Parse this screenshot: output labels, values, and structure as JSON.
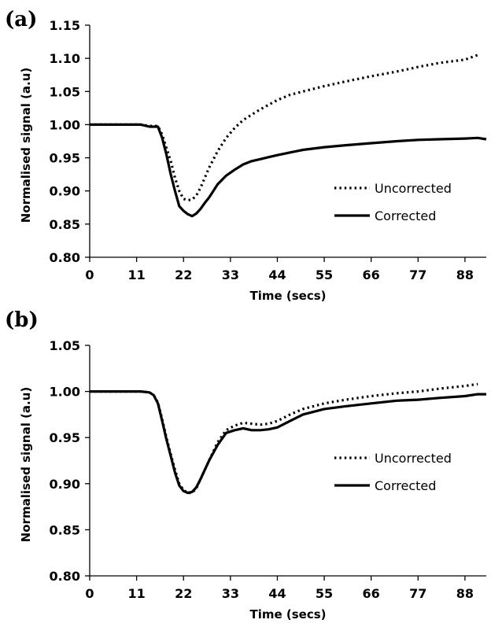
{
  "chart_data": [
    {
      "type": "line",
      "panel_label": "(a)",
      "xlabel": "Time (secs)",
      "ylabel": "Normalised signal (a.u)",
      "xlim": [
        0,
        93
      ],
      "ylim": [
        0.8,
        1.15
      ],
      "x_ticks": [
        "0",
        "11",
        "22",
        "33",
        "44",
        "55",
        "66",
        "77",
        "88"
      ],
      "x_tick_values": [
        0,
        11,
        22,
        33,
        44,
        55,
        66,
        77,
        88
      ],
      "y_ticks": [
        "0.80",
        "0.85",
        "0.90",
        "0.95",
        "1.00",
        "1.05",
        "1.10",
        "1.15"
      ],
      "y_tick_values": [
        0.8,
        0.85,
        0.9,
        0.95,
        1.0,
        1.05,
        1.1,
        1.15
      ],
      "grid": false,
      "legend_position": "right",
      "series": [
        {
          "name": "Uncorrected",
          "style": "dotted",
          "x": [
            0,
            12,
            14,
            16,
            17,
            18,
            19,
            20,
            21,
            22,
            23,
            24,
            25,
            26,
            27,
            28,
            30,
            32,
            34,
            36,
            38,
            40,
            42,
            44,
            47,
            50,
            55,
            60,
            66,
            72,
            77,
            82,
            88,
            91
          ],
          "y": [
            1.0,
            1.0,
            0.998,
            0.998,
            0.985,
            0.965,
            0.945,
            0.92,
            0.9,
            0.888,
            0.886,
            0.887,
            0.893,
            0.905,
            0.92,
            0.935,
            0.96,
            0.98,
            0.995,
            1.007,
            1.015,
            1.023,
            1.03,
            1.037,
            1.045,
            1.05,
            1.058,
            1.065,
            1.073,
            1.08,
            1.087,
            1.093,
            1.098,
            1.105
          ]
        },
        {
          "name": "Corrected",
          "style": "solid",
          "x": [
            0,
            12,
            14,
            16,
            17,
            18,
            19,
            20,
            21,
            22,
            23,
            24,
            25,
            26,
            27,
            28,
            30,
            32,
            34,
            36,
            38,
            40,
            42,
            44,
            47,
            50,
            55,
            60,
            66,
            72,
            77,
            82,
            88,
            91,
            93
          ],
          "y": [
            1.0,
            1.0,
            0.997,
            0.997,
            0.98,
            0.955,
            0.925,
            0.9,
            0.877,
            0.87,
            0.865,
            0.862,
            0.866,
            0.873,
            0.882,
            0.89,
            0.91,
            0.923,
            0.932,
            0.94,
            0.945,
            0.948,
            0.951,
            0.954,
            0.958,
            0.962,
            0.966,
            0.969,
            0.972,
            0.975,
            0.977,
            0.978,
            0.979,
            0.98,
            0.978
          ]
        }
      ]
    },
    {
      "type": "line",
      "panel_label": "(b)",
      "xlabel": "Time (secs)",
      "ylabel": "Normalised signal (a.u)",
      "xlim": [
        0,
        93
      ],
      "ylim": [
        0.8,
        1.05
      ],
      "x_ticks": [
        "0",
        "11",
        "22",
        "33",
        "44",
        "55",
        "66",
        "77",
        "88"
      ],
      "x_tick_values": [
        0,
        11,
        22,
        33,
        44,
        55,
        66,
        77,
        88
      ],
      "y_ticks": [
        "0.80",
        "0.85",
        "0.90",
        "0.95",
        "1.00",
        "1.05"
      ],
      "y_tick_values": [
        0.8,
        0.85,
        0.9,
        0.95,
        1.0,
        1.05
      ],
      "grid": false,
      "legend_position": "right",
      "series": [
        {
          "name": "Uncorrected",
          "style": "dotted",
          "x": [
            0,
            12,
            14,
            15,
            16,
            17,
            18,
            19,
            20,
            21,
            22,
            23,
            24,
            25,
            26,
            27,
            28,
            30,
            32,
            34,
            36,
            38,
            40,
            42,
            44,
            47,
            50,
            55,
            60,
            66,
            72,
            77,
            82,
            88,
            91
          ],
          "y": [
            1.0,
            1.0,
            0.999,
            0.996,
            0.988,
            0.97,
            0.95,
            0.932,
            0.915,
            0.9,
            0.893,
            0.89,
            0.89,
            0.895,
            0.905,
            0.915,
            0.925,
            0.945,
            0.958,
            0.963,
            0.966,
            0.965,
            0.964,
            0.965,
            0.968,
            0.975,
            0.981,
            0.987,
            0.991,
            0.995,
            0.998,
            1.0,
            1.003,
            1.006,
            1.008
          ]
        },
        {
          "name": "Corrected",
          "style": "solid",
          "x": [
            0,
            12,
            14,
            15,
            16,
            17,
            18,
            19,
            20,
            21,
            22,
            23,
            24,
            25,
            26,
            27,
            28,
            30,
            32,
            34,
            36,
            38,
            40,
            42,
            44,
            47,
            50,
            55,
            60,
            66,
            72,
            77,
            82,
            88,
            91,
            93
          ],
          "y": [
            1.0,
            1.0,
            0.999,
            0.996,
            0.987,
            0.968,
            0.948,
            0.93,
            0.912,
            0.898,
            0.892,
            0.89,
            0.891,
            0.896,
            0.905,
            0.915,
            0.925,
            0.942,
            0.955,
            0.958,
            0.96,
            0.958,
            0.958,
            0.959,
            0.961,
            0.968,
            0.975,
            0.981,
            0.984,
            0.987,
            0.99,
            0.991,
            0.993,
            0.995,
            0.997,
            0.997
          ]
        }
      ]
    }
  ]
}
